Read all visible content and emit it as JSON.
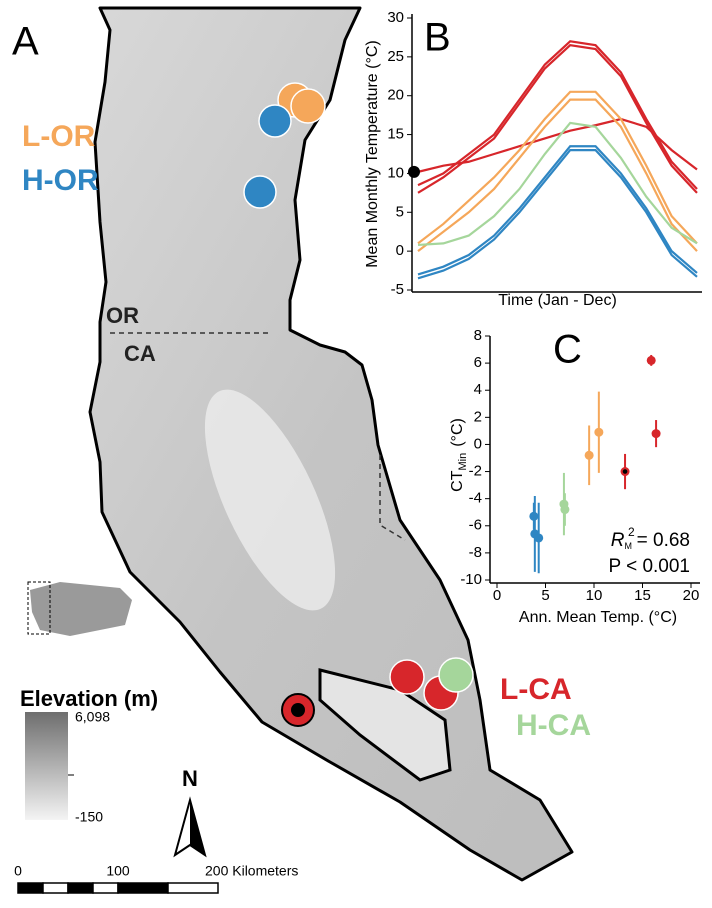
{
  "map": {
    "panel_letter": "A",
    "labels": [
      {
        "text": "L-OR",
        "color": "#f5a75a"
      },
      {
        "text": "H-OR",
        "color": "#2f86c3"
      },
      {
        "text": "OR",
        "color": "#222222"
      },
      {
        "text": "CA",
        "color": "#222222"
      },
      {
        "text": "L-CA",
        "color": "#d7262b"
      },
      {
        "text": "H-CA",
        "color": "#a5d69b"
      }
    ],
    "legend": {
      "title": "Elevation (m)",
      "max_label": "6,098",
      "min_label": "-150"
    },
    "north": "N",
    "scale_bar": [
      "0",
      "100",
      "200 Kilometers"
    ]
  },
  "chart_data": [
    {
      "type": "line",
      "panel_letter": "B",
      "y_label": "Mean Monthly Temperature (°C)",
      "x_label": "Time (Jan - Dec)",
      "categories": [
        null,
        null,
        null,
        null,
        null,
        null,
        null,
        null,
        null,
        null,
        null,
        null
      ],
      "ylim": [
        -5,
        30
      ],
      "yticks": [
        -5,
        0,
        5,
        10,
        15,
        20,
        25,
        30
      ],
      "series": [
        {
          "color": "#d7262b",
          "values": [
            8.5,
            10,
            12.5,
            15,
            19.5,
            24,
            27,
            26.5,
            23,
            17,
            11.5,
            8
          ]
        },
        {
          "color": "#d7262b",
          "values": [
            7.5,
            9.5,
            12,
            14.5,
            19,
            23.5,
            26.5,
            26,
            22.5,
            16.5,
            11,
            7.5
          ]
        },
        {
          "color": "#d7262b",
          "start_marker": "#000000",
          "values": [
            10.2,
            11,
            11.5,
            12.5,
            13.5,
            14.5,
            15.5,
            16.2,
            17,
            16,
            13,
            10.5
          ]
        },
        {
          "color": "#f5a75a",
          "values": [
            1,
            3.5,
            6.5,
            9.5,
            13,
            17,
            20.5,
            20.5,
            17,
            11,
            4.5,
            1
          ]
        },
        {
          "color": "#f5a75a",
          "values": [
            0,
            2.5,
            5,
            8,
            12,
            16,
            19.5,
            19.5,
            16,
            10,
            3.5,
            0
          ]
        },
        {
          "color": "#a5d69b",
          "values": [
            0.8,
            1,
            2,
            4.5,
            8,
            12.5,
            16.5,
            16,
            12,
            7,
            3,
            1
          ]
        },
        {
          "color": "#2f86c3",
          "values": [
            -3,
            -2,
            -0.5,
            2,
            5.5,
            9.5,
            13.5,
            13.5,
            10,
            5.5,
            0,
            -2.8
          ]
        },
        {
          "color": "#2f86c3",
          "values": [
            -3.5,
            -2.5,
            -1,
            1.5,
            5,
            9,
            13,
            13,
            9.5,
            5,
            -0.5,
            -3.3
          ]
        }
      ]
    },
    {
      "type": "scatter",
      "panel_letter": "C",
      "x_label": "Ann. Mean Temp. (°C)",
      "y_label": {
        "main": "CT",
        "sub": "Min",
        "unit": "(°C)"
      },
      "annotation": {
        "symbol": "R",
        "sub": "M",
        "sup": "2",
        "text": "= 0.68",
        "p_text": "P < 0.001"
      },
      "xlim": [
        0,
        20
      ],
      "xticks": [
        0,
        5,
        10,
        15,
        20
      ],
      "ylim": [
        -10,
        8
      ],
      "yticks": [
        -10,
        -8,
        -6,
        -4,
        -2,
        0,
        2,
        4,
        6,
        8
      ],
      "series": [
        {
          "color": "#2f86c3",
          "x": [
            3.8,
            3.9,
            4.3
          ],
          "values": [
            -5.3,
            -6.6,
            -6.9
          ],
          "errors": [
            1.0,
            2.8,
            2.6
          ]
        },
        {
          "color": "#a5d69b",
          "x": [
            6.9,
            7.0
          ],
          "values": [
            -4.4,
            -4.8
          ],
          "errors": [
            2.3,
            1.2
          ]
        },
        {
          "color": "#f5a75a",
          "x": [
            9.5,
            10.5
          ],
          "values": [
            -0.8,
            0.9
          ],
          "errors": [
            2.2,
            3.0
          ]
        },
        {
          "color": "#d7262b",
          "x": [
            15.9,
            16.4
          ],
          "values": [
            6.2,
            0.8
          ],
          "errors": [
            0.4,
            1.0
          ]
        },
        {
          "color": "#d7262b",
          "center_color": "#000000",
          "x": [
            13.2
          ],
          "values": [
            -2.0
          ],
          "errors": [
            1.3
          ]
        }
      ]
    }
  ]
}
